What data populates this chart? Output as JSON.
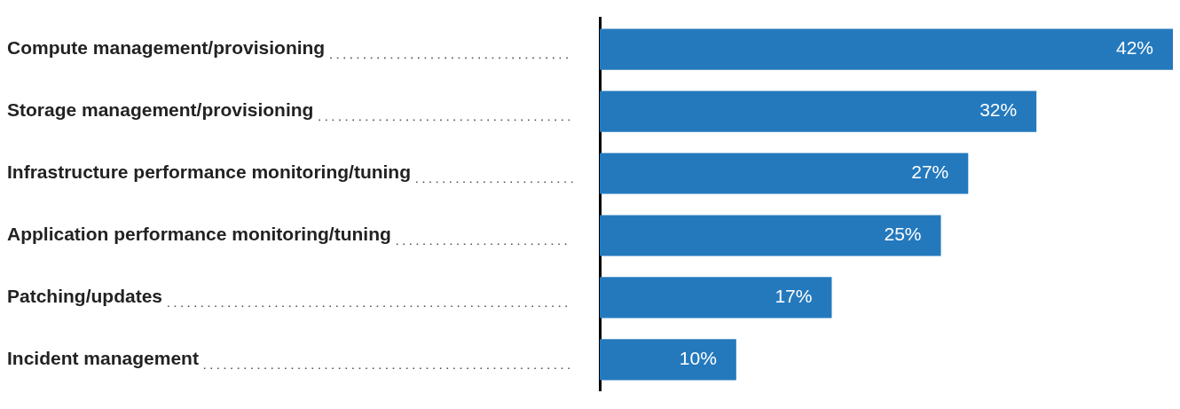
{
  "chart_data": {
    "type": "bar",
    "orientation": "horizontal",
    "categories": [
      "Compute management/provisioning",
      "Storage management/provisioning",
      "Infrastructure performance monitoring/tuning",
      "Application performance monitoring/tuning",
      "Patching/updates",
      "Incident management"
    ],
    "values": [
      42,
      32,
      27,
      25,
      17,
      10
    ],
    "value_labels": [
      "42%",
      "32%",
      "27%",
      "25%",
      "17%",
      "10%"
    ],
    "color": "#2479bd",
    "xlim": [
      0,
      42
    ],
    "grid": false,
    "legend": false
  }
}
